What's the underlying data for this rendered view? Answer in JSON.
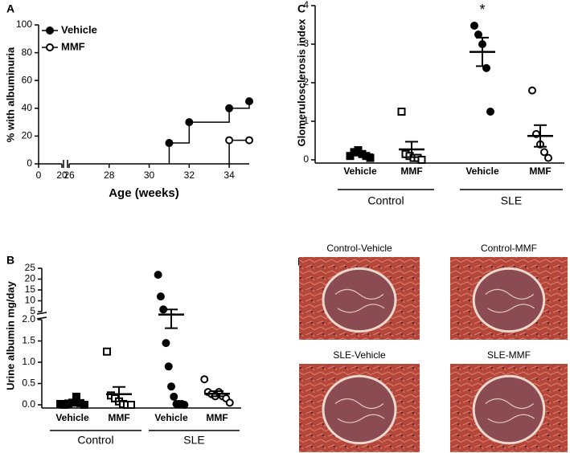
{
  "chart_data": [
    {
      "type": "step",
      "panel": "A",
      "ylabel": "% with albuminuria",
      "xlabel": "Age (weeks)",
      "xlim": [
        0,
        35
      ],
      "xbreak": [
        20,
        26
      ],
      "xticks": [
        0,
        20,
        26,
        28,
        30,
        32,
        34
      ],
      "ylim": [
        0,
        100
      ],
      "yticks": [
        0,
        20,
        40,
        60,
        80,
        100
      ],
      "legend": "upper left",
      "series": [
        {
          "name": "Vehicle",
          "color": "#000000",
          "filled": true,
          "x": [
            31,
            32,
            34,
            35
          ],
          "values": [
            15,
            30,
            40,
            45
          ]
        },
        {
          "name": "MMF",
          "color": "#000000",
          "filled": false,
          "x": [
            34,
            35
          ],
          "values": [
            17,
            17
          ]
        }
      ]
    },
    {
      "type": "dot",
      "panel": "B",
      "ylabel": "Urine albumin mg/day",
      "ylim": [
        0,
        25
      ],
      "ybreak": [
        2,
        5
      ],
      "yticks": [
        {
          "value": 0,
          "label": "0.0"
        },
        {
          "value": 0.5,
          "label": "0.5"
        },
        {
          "value": 1,
          "label": "1.0"
        },
        {
          "value": 1.5,
          "label": "1.5"
        },
        {
          "value": 2,
          "label": "2.0"
        },
        5,
        10,
        15,
        20,
        25
      ],
      "categories": [
        "Vehicle",
        "MMF",
        "Vehicle",
        "MMF"
      ],
      "groups": [
        "Control",
        "SLE"
      ],
      "markers": [
        "square",
        "square",
        "circle",
        "circle"
      ],
      "filled": [
        true,
        false,
        true,
        false
      ],
      "color": "#000000",
      "points": [
        [
          0.02,
          0.0,
          0.03,
          0.05,
          0.19,
          0.04,
          0.0
        ],
        [
          1.25,
          0.22,
          0.15,
          0.08,
          0.02,
          0.0,
          0.0
        ],
        [
          22,
          12,
          6,
          1.45,
          0.9,
          0.43,
          0.19,
          0.02,
          0.02,
          0.02,
          0.0
        ],
        [
          0.6,
          0.3,
          0.25,
          0.2,
          0.3,
          0.2,
          0.15,
          0.05
        ]
      ],
      "means": [
        0.05,
        0.25,
        3.9,
        0.26
      ],
      "sems": [
        0.03,
        0.17,
        2.1,
        0.06
      ]
    },
    {
      "type": "dot",
      "panel": "C",
      "ylabel": "Glomerulosclerosis index",
      "ylim": [
        0,
        4
      ],
      "yticks": [
        0,
        1,
        2,
        3,
        4
      ],
      "categories": [
        "Vehicle",
        "MMF",
        "Vehicle",
        "MMF"
      ],
      "groups": [
        "Control",
        "SLE"
      ],
      "markers": [
        "square",
        "square",
        "circle",
        "circle"
      ],
      "filled": [
        true,
        false,
        true,
        false
      ],
      "color": "#000000",
      "points": [
        [
          0.1,
          0.2,
          0.25,
          0.15,
          0.1,
          0.05
        ],
        [
          1.25,
          0.15,
          0.1,
          0.05,
          0.05,
          0.0
        ],
        [
          3.48,
          3.25,
          3.0,
          2.38,
          1.25
        ],
        [
          1.8,
          0.67,
          0.4,
          0.2,
          0.05
        ]
      ],
      "means": [
        0.14,
        0.27,
        2.8,
        0.62
      ],
      "sems": [
        0.03,
        0.2,
        0.37,
        0.28
      ],
      "significance": [
        null,
        null,
        "*",
        null
      ]
    }
  ],
  "image_panel": {
    "panel": "D",
    "images": [
      "Control-Vehicle",
      "Control-MMF",
      "SLE-Vehicle",
      "SLE-MMF"
    ]
  }
}
